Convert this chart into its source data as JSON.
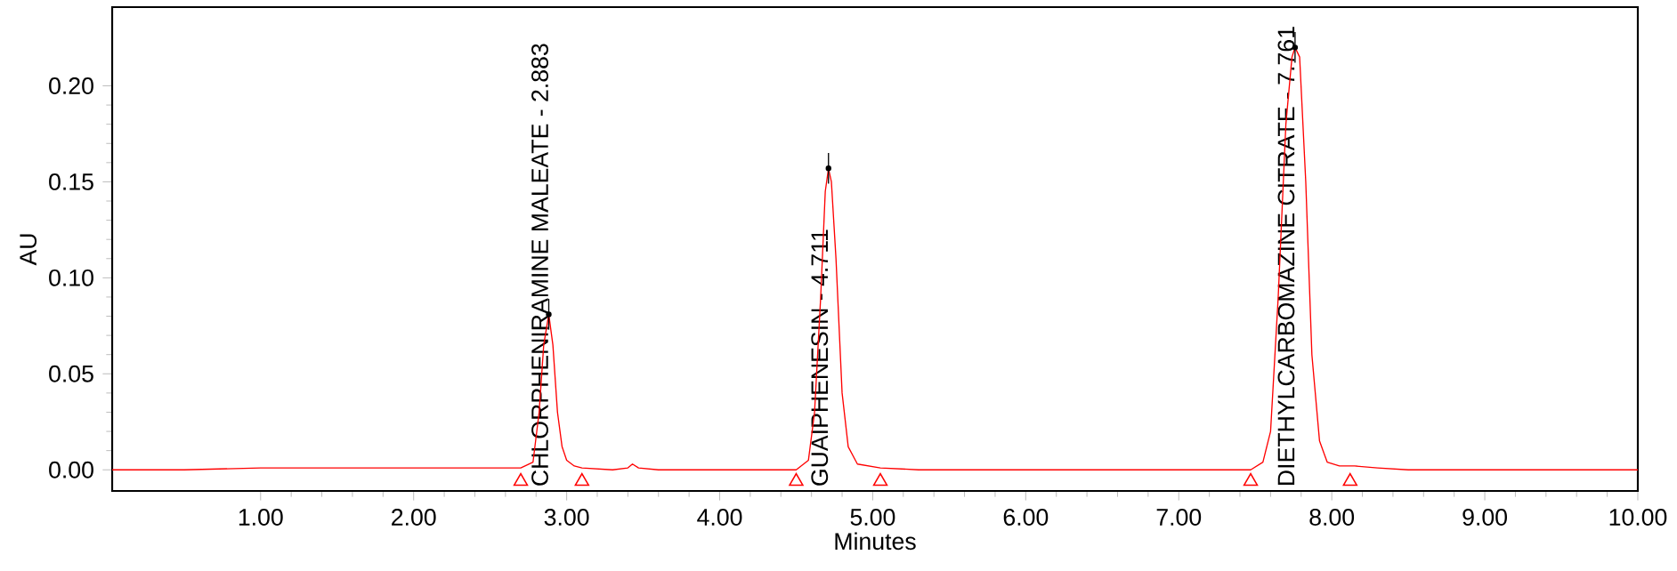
{
  "chart_data": {
    "type": "line",
    "xlabel": "Minutes",
    "ylabel": "AU",
    "xlim": [
      0.03,
      10
    ],
    "ylim": [
      -0.011,
      0.241
    ],
    "xticks": [
      {
        "value": 1,
        "label": "1.00"
      },
      {
        "value": 2,
        "label": "2.00"
      },
      {
        "value": 3,
        "label": "3.00"
      },
      {
        "value": 4,
        "label": "4.00"
      },
      {
        "value": 5,
        "label": "5.00"
      },
      {
        "value": 6,
        "label": "6.00"
      },
      {
        "value": 7,
        "label": "7.00"
      },
      {
        "value": 8,
        "label": "8.00"
      },
      {
        "value": 9,
        "label": "9.00"
      },
      {
        "value": 10,
        "label": "10.00"
      }
    ],
    "yticks": [
      {
        "value": 0,
        "label": "0.00"
      },
      {
        "value": 0.05,
        "label": "0.05"
      },
      {
        "value": 0.1,
        "label": "0.10"
      },
      {
        "value": 0.15,
        "label": "0.15"
      },
      {
        "value": 0.2,
        "label": "0.20"
      }
    ],
    "grid": false,
    "series": [
      {
        "marker": "none",
        "line_style": "solid",
        "color": "#ff0000",
        "x": [
          0.03,
          0.5,
          1.0,
          1.5,
          2.0,
          2.5,
          2.7,
          2.78,
          2.82,
          2.85,
          2.883,
          2.91,
          2.94,
          2.97,
          3.0,
          3.05,
          3.1,
          3.3,
          3.4,
          3.43,
          3.47,
          3.6,
          4.0,
          4.5,
          4.58,
          4.62,
          4.66,
          4.69,
          4.711,
          4.73,
          4.76,
          4.8,
          4.84,
          4.9,
          5.05,
          5.3,
          6.0,
          7.0,
          7.47,
          7.55,
          7.6,
          7.65,
          7.7,
          7.74,
          7.76,
          7.79,
          7.83,
          7.87,
          7.92,
          7.97,
          8.05,
          8.15,
          8.3,
          8.5,
          9.0,
          10.0
        ],
        "values": [
          0.0,
          0.0,
          0.001,
          0.001,
          0.001,
          0.001,
          0.001,
          0.004,
          0.03,
          0.065,
          0.081,
          0.065,
          0.03,
          0.012,
          0.005,
          0.002,
          0.001,
          0.0,
          0.001,
          0.003,
          0.001,
          0.0,
          0.0,
          0.0,
          0.005,
          0.03,
          0.09,
          0.145,
          0.157,
          0.15,
          0.11,
          0.04,
          0.012,
          0.003,
          0.001,
          0.0,
          0.0,
          0.0,
          0.0,
          0.004,
          0.02,
          0.09,
          0.18,
          0.215,
          0.22,
          0.215,
          0.15,
          0.06,
          0.015,
          0.004,
          0.002,
          0.002,
          0.001,
          0.0,
          0.0,
          0.0
        ]
      },
      {
        "type": "scatter",
        "marker": "triangle",
        "color": "#ff0000",
        "x": [
          2.7,
          3.1,
          4.5,
          5.05,
          7.47,
          8.12
        ],
        "values": [
          -0.006,
          -0.006,
          -0.006,
          -0.006,
          -0.006,
          -0.006
        ]
      },
      {
        "type": "scatter",
        "marker": "circle",
        "color": "#000000",
        "x": [
          2.883,
          4.711,
          7.76
        ],
        "values": [
          0.081,
          0.157,
          0.22
        ],
        "errors": [
          0.008,
          0.008,
          0.008
        ]
      }
    ],
    "annotations": [
      "CHLORPHENIRAMINE MALEATE - 2.883",
      "GUAIPHENESIN - 4.711",
      "DIETHYLCARBOMAZINE CITRATE - 7.761"
    ]
  }
}
